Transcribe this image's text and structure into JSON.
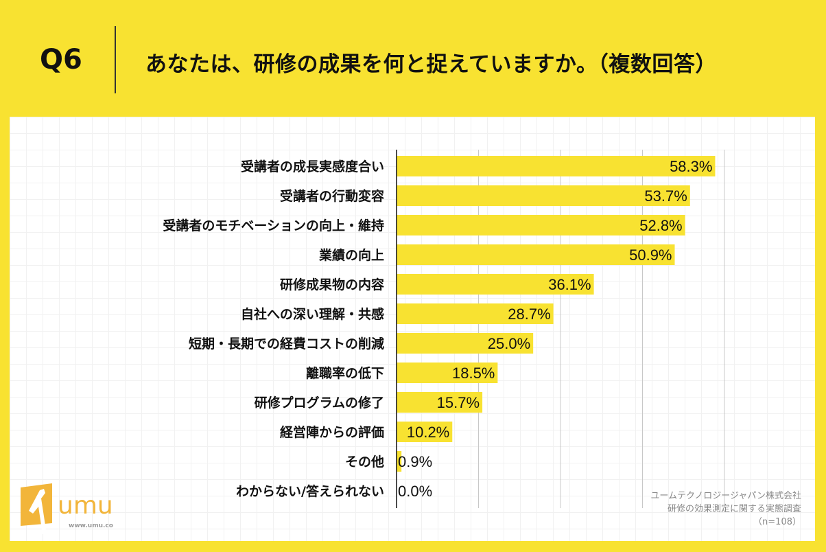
{
  "header": {
    "question_number": "Q6",
    "question": "あなたは、研修の成果を何と捉えていますか。（複数回答）"
  },
  "chart_data": {
    "type": "bar",
    "orientation": "horizontal",
    "categories": [
      "受講者の成長実感度合い",
      "受講者の行動変容",
      "受講者のモチベーションの向上・維持",
      "業績の向上",
      "研修成果物の内容",
      "自社への深い理解・共感",
      "短期・長期での経費コストの削減",
      "離職率の低下",
      "研修プログラムの修了",
      "経営陣からの評価",
      "その他",
      "わからない/答えられない"
    ],
    "values": [
      58.3,
      53.7,
      52.8,
      50.9,
      36.1,
      28.7,
      25.0,
      18.5,
      15.7,
      10.2,
      0.9,
      0.0
    ],
    "value_labels": [
      "58.3%",
      "53.7%",
      "52.8%",
      "50.9%",
      "36.1%",
      "28.7%",
      "25.0%",
      "18.5%",
      "15.7%",
      "10.2%",
      "0.9%",
      "0.0%"
    ],
    "xlim": [
      0,
      60
    ],
    "grid_step": 15,
    "grid": true,
    "bar_color": "#f8e231"
  },
  "source": {
    "line1": "ユームテクノロジージャパン株式会社",
    "line2": "研修の効果測定に関する実態調査",
    "line3": "（n=108）"
  },
  "logo": {
    "text": "umu",
    "url_text": "www.umu.co",
    "color": "#f2b53a"
  }
}
